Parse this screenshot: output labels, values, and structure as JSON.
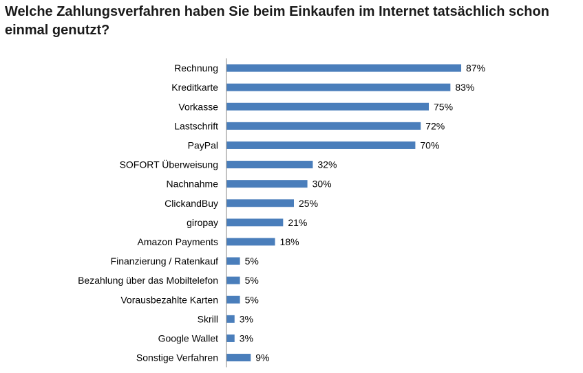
{
  "chart_data": {
    "type": "bar",
    "orientation": "horizontal",
    "title": "Welche Zahlungsverfahren haben Sie beim Einkaufen im Internet tatsächlich schon einmal genutzt?",
    "categories": [
      "Rechnung",
      "Kreditkarte",
      "Vorkasse",
      "Lastschrift",
      "PayPal",
      "SOFORT Überweisung",
      "Nachnahme",
      "ClickandBuy",
      "giropay",
      "Amazon Payments",
      "Finanzierung / Ratenkauf",
      "Bezahlung über das Mobiltelefon",
      "Vorausbezahlte Karten",
      "Skrill",
      "Google Wallet",
      "Sonstige Verfahren"
    ],
    "values": [
      87,
      83,
      75,
      72,
      70,
      32,
      30,
      25,
      21,
      18,
      5,
      5,
      5,
      3,
      3,
      9
    ],
    "value_labels": [
      "87%",
      "83%",
      "75%",
      "72%",
      "70%",
      "32%",
      "30%",
      "25%",
      "21%",
      "18%",
      "5%",
      "5%",
      "5%",
      "3%",
      "3%",
      "9%"
    ],
    "unit": "%",
    "xlim": [
      0,
      100
    ],
    "grid": false,
    "legend": "none",
    "bar_color": "#4a7ebb",
    "axis_color": "#868686"
  }
}
